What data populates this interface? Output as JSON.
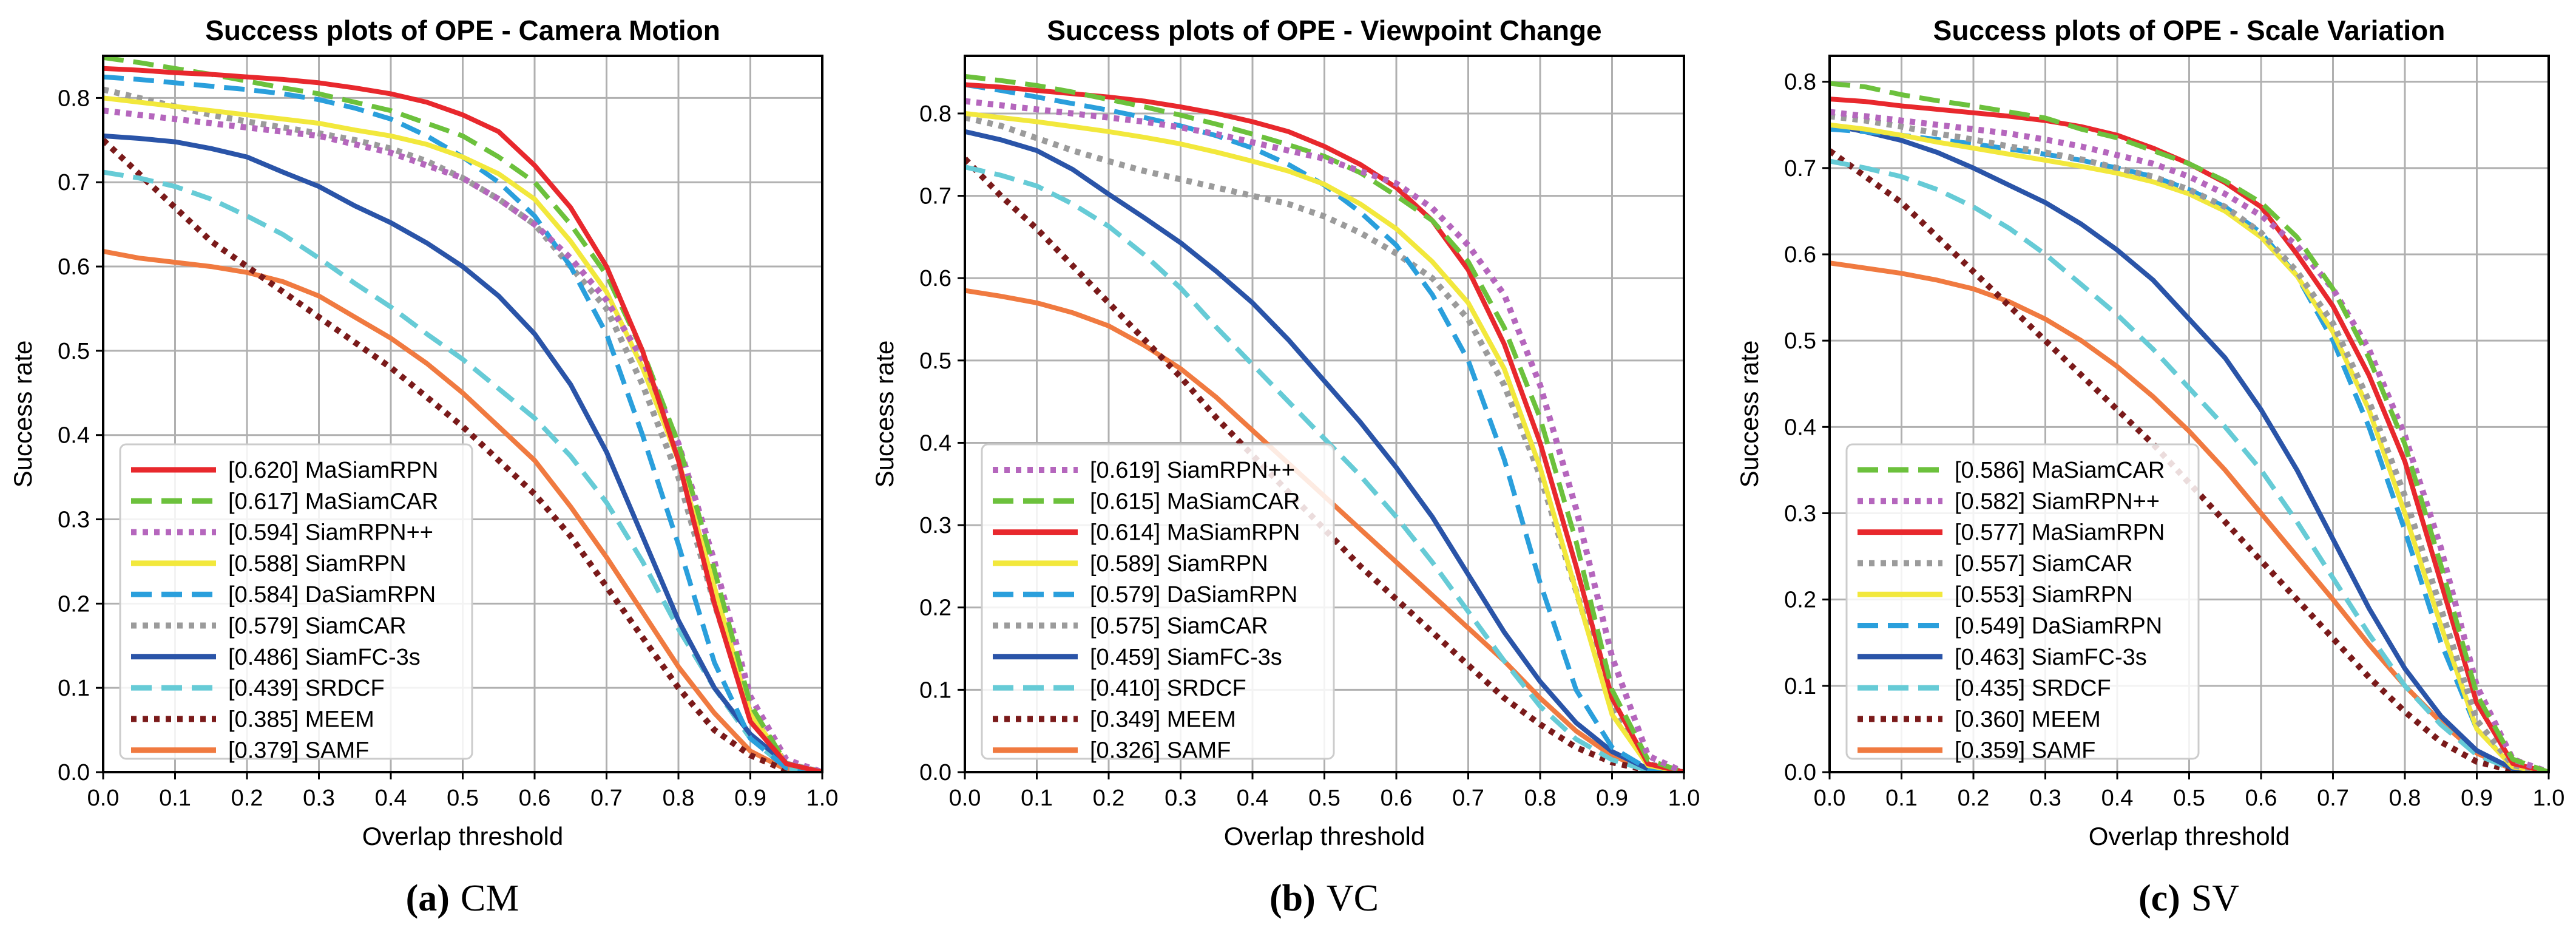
{
  "colors": {
    "MaSiamRPN": "#e8282d",
    "MaSiamCAR": "#6cc13c",
    "SiamRPN++": "#b566bd",
    "SiamRPN": "#f2e83c",
    "DaSiamRPN": "#2a9fdc",
    "SiamCAR": "#9b9b9b",
    "SiamFC-3s": "#2a54a8",
    "SRDCF": "#66cbd6",
    "MEEM": "#7a1a1a",
    "SAMF": "#f07a40"
  },
  "styles": {
    "MaSiamRPN": "solid",
    "MaSiamCAR": "dashed",
    "SiamRPN++": "dotted",
    "SiamRPN": "solid",
    "DaSiamRPN": "dashed",
    "SiamCAR": "dotted",
    "SiamFC-3s": "solid",
    "SRDCF": "dashed",
    "MEEM": "dotted",
    "SAMF": "solid"
  },
  "chart_data": [
    {
      "type": "line",
      "title": "Success plots of OPE - Camera Motion",
      "xlabel": "Overlap threshold",
      "ylabel": "Success rate",
      "xlim": [
        0,
        1
      ],
      "ylim": [
        0,
        0.85
      ],
      "xticks": [
        "0.0",
        "0.1",
        "0.2",
        "0.3",
        "0.4",
        "0.5",
        "0.6",
        "0.7",
        "0.8",
        "0.9",
        "1.0"
      ],
      "yticks": [
        "0.0",
        "0.1",
        "0.2",
        "0.3",
        "0.4",
        "0.5",
        "0.6",
        "0.7",
        "0.8"
      ],
      "grid": true,
      "legend_position": "lower-left",
      "caption_letter": "(a)",
      "caption_text": "CM",
      "x": [
        0,
        0.05,
        0.1,
        0.15,
        0.2,
        0.25,
        0.3,
        0.35,
        0.4,
        0.45,
        0.5,
        0.55,
        0.6,
        0.65,
        0.7,
        0.75,
        0.8,
        0.85,
        0.9,
        0.95,
        1.0
      ],
      "series": [
        {
          "name": "MaSiamRPN",
          "legend": "[0.620] MaSiamRPN",
          "values": [
            0.835,
            0.833,
            0.83,
            0.828,
            0.825,
            0.822,
            0.818,
            0.812,
            0.805,
            0.795,
            0.78,
            0.76,
            0.72,
            0.67,
            0.6,
            0.5,
            0.37,
            0.2,
            0.06,
            0.01,
            0.0
          ]
        },
        {
          "name": "MaSiamCAR",
          "legend": "[0.617] MaSiamCAR",
          "values": [
            0.848,
            0.842,
            0.835,
            0.828,
            0.82,
            0.812,
            0.805,
            0.795,
            0.785,
            0.77,
            0.755,
            0.73,
            0.7,
            0.65,
            0.59,
            0.5,
            0.39,
            0.24,
            0.08,
            0.01,
            0.0
          ]
        },
        {
          "name": "SiamRPN++",
          "legend": "[0.594] SiamRPN++",
          "values": [
            0.785,
            0.78,
            0.775,
            0.77,
            0.765,
            0.76,
            0.755,
            0.745,
            0.735,
            0.72,
            0.705,
            0.68,
            0.65,
            0.61,
            0.56,
            0.49,
            0.39,
            0.25,
            0.09,
            0.015,
            0.0
          ]
        },
        {
          "name": "SiamRPN",
          "legend": "[0.588] SiamRPN",
          "values": [
            0.8,
            0.795,
            0.79,
            0.785,
            0.78,
            0.775,
            0.77,
            0.762,
            0.755,
            0.745,
            0.73,
            0.71,
            0.68,
            0.63,
            0.57,
            0.48,
            0.37,
            0.22,
            0.07,
            0.01,
            0.0
          ]
        },
        {
          "name": "DaSiamRPN",
          "legend": "[0.584] DaSiamRPN",
          "values": [
            0.825,
            0.822,
            0.818,
            0.814,
            0.81,
            0.805,
            0.798,
            0.788,
            0.775,
            0.755,
            0.73,
            0.7,
            0.66,
            0.6,
            0.52,
            0.4,
            0.27,
            0.13,
            0.04,
            0.005,
            0.0
          ]
        },
        {
          "name": "SiamCAR",
          "legend": "[0.579] SiamCAR",
          "values": [
            0.81,
            0.8,
            0.79,
            0.78,
            0.772,
            0.765,
            0.758,
            0.75,
            0.74,
            0.725,
            0.705,
            0.68,
            0.65,
            0.6,
            0.55,
            0.46,
            0.35,
            0.2,
            0.07,
            0.01,
            0.0
          ]
        },
        {
          "name": "SiamFC-3s",
          "legend": "[0.486] SiamFC-3s",
          "values": [
            0.755,
            0.752,
            0.748,
            0.74,
            0.73,
            0.712,
            0.695,
            0.672,
            0.652,
            0.628,
            0.6,
            0.565,
            0.52,
            0.46,
            0.38,
            0.28,
            0.18,
            0.1,
            0.045,
            0.01,
            0.0
          ]
        },
        {
          "name": "SRDCF",
          "legend": "[0.439] SRDCF",
          "values": [
            0.712,
            0.705,
            0.695,
            0.68,
            0.66,
            0.638,
            0.61,
            0.58,
            0.552,
            0.52,
            0.49,
            0.455,
            0.42,
            0.375,
            0.32,
            0.25,
            0.17,
            0.1,
            0.04,
            0.005,
            0.0
          ]
        },
        {
          "name": "MEEM",
          "legend": "[0.385] MEEM",
          "values": [
            0.75,
            0.71,
            0.67,
            0.63,
            0.6,
            0.57,
            0.54,
            0.51,
            0.48,
            0.445,
            0.41,
            0.37,
            0.33,
            0.28,
            0.22,
            0.16,
            0.1,
            0.05,
            0.02,
            0.002,
            0.0
          ]
        },
        {
          "name": "SAMF",
          "legend": "[0.379] SAMF",
          "values": [
            0.618,
            0.61,
            0.605,
            0.6,
            0.593,
            0.582,
            0.565,
            0.54,
            0.515,
            0.485,
            0.45,
            0.41,
            0.37,
            0.315,
            0.255,
            0.19,
            0.125,
            0.07,
            0.025,
            0.003,
            0.0
          ]
        }
      ]
    },
    {
      "type": "line",
      "title": "Success plots of OPE - Viewpoint Change",
      "xlabel": "Overlap threshold",
      "ylabel": "Success rate",
      "xlim": [
        0,
        1
      ],
      "ylim": [
        0,
        0.87
      ],
      "xticks": [
        "0.0",
        "0.1",
        "0.2",
        "0.3",
        "0.4",
        "0.5",
        "0.6",
        "0.7",
        "0.8",
        "0.9",
        "1.0"
      ],
      "yticks": [
        "0.0",
        "0.1",
        "0.2",
        "0.3",
        "0.4",
        "0.5",
        "0.6",
        "0.7",
        "0.8"
      ],
      "grid": true,
      "legend_position": "lower-left",
      "caption_letter": "(b)",
      "caption_text": "VC",
      "x": [
        0,
        0.05,
        0.1,
        0.15,
        0.2,
        0.25,
        0.3,
        0.35,
        0.4,
        0.45,
        0.5,
        0.55,
        0.6,
        0.65,
        0.7,
        0.75,
        0.8,
        0.85,
        0.9,
        0.95,
        1.0
      ],
      "series": [
        {
          "name": "SiamRPN++",
          "legend": "[0.619] SiamRPN++",
          "values": [
            0.815,
            0.81,
            0.805,
            0.8,
            0.795,
            0.79,
            0.783,
            0.775,
            0.765,
            0.755,
            0.745,
            0.73,
            0.715,
            0.685,
            0.64,
            0.58,
            0.47,
            0.32,
            0.14,
            0.02,
            0.0
          ]
        },
        {
          "name": "MaSiamCAR",
          "legend": "[0.615] MaSiamCAR",
          "values": [
            0.845,
            0.84,
            0.834,
            0.826,
            0.817,
            0.808,
            0.798,
            0.787,
            0.775,
            0.762,
            0.748,
            0.728,
            0.7,
            0.67,
            0.62,
            0.54,
            0.43,
            0.28,
            0.1,
            0.015,
            0.0
          ]
        },
        {
          "name": "MaSiamRPN",
          "legend": "[0.614] MaSiamRPN",
          "values": [
            0.835,
            0.832,
            0.828,
            0.824,
            0.82,
            0.815,
            0.808,
            0.8,
            0.79,
            0.778,
            0.76,
            0.738,
            0.71,
            0.67,
            0.61,
            0.52,
            0.4,
            0.25,
            0.09,
            0.01,
            0.0
          ]
        },
        {
          "name": "SiamRPN",
          "legend": "[0.589] SiamRPN",
          "values": [
            0.8,
            0.795,
            0.79,
            0.784,
            0.778,
            0.771,
            0.763,
            0.753,
            0.742,
            0.73,
            0.714,
            0.69,
            0.66,
            0.62,
            0.57,
            0.49,
            0.37,
            0.22,
            0.07,
            0.008,
            0.0
          ]
        },
        {
          "name": "DaSiamRPN",
          "legend": "[0.579] DaSiamRPN",
          "values": [
            0.835,
            0.828,
            0.82,
            0.812,
            0.804,
            0.795,
            0.785,
            0.773,
            0.758,
            0.738,
            0.713,
            0.68,
            0.64,
            0.58,
            0.5,
            0.38,
            0.23,
            0.1,
            0.03,
            0.004,
            0.0
          ]
        },
        {
          "name": "SiamCAR",
          "legend": "[0.575] SiamCAR",
          "values": [
            0.795,
            0.785,
            0.77,
            0.755,
            0.742,
            0.73,
            0.72,
            0.71,
            0.7,
            0.69,
            0.675,
            0.655,
            0.63,
            0.6,
            0.55,
            0.47,
            0.36,
            0.22,
            0.08,
            0.01,
            0.0
          ]
        },
        {
          "name": "SiamFC-3s",
          "legend": "[0.459] SiamFC-3s",
          "values": [
            0.778,
            0.768,
            0.755,
            0.732,
            0.702,
            0.673,
            0.643,
            0.608,
            0.57,
            0.525,
            0.475,
            0.425,
            0.37,
            0.31,
            0.24,
            0.17,
            0.11,
            0.06,
            0.025,
            0.004,
            0.0
          ]
        },
        {
          "name": "SRDCF",
          "legend": "[0.410] SRDCF",
          "values": [
            0.735,
            0.725,
            0.712,
            0.69,
            0.663,
            0.628,
            0.588,
            0.54,
            0.495,
            0.45,
            0.405,
            0.36,
            0.31,
            0.255,
            0.195,
            0.135,
            0.08,
            0.04,
            0.015,
            0.002,
            0.0
          ]
        },
        {
          "name": "MEEM",
          "legend": "[0.349] MEEM",
          "values": [
            0.745,
            0.7,
            0.66,
            0.615,
            0.57,
            0.525,
            0.48,
            0.43,
            0.385,
            0.34,
            0.295,
            0.25,
            0.21,
            0.17,
            0.13,
            0.09,
            0.058,
            0.03,
            0.012,
            0.002,
            0.0
          ]
        },
        {
          "name": "SAMF",
          "legend": "[0.326] SAMF",
          "values": [
            0.585,
            0.578,
            0.57,
            0.558,
            0.542,
            0.518,
            0.49,
            0.455,
            0.415,
            0.375,
            0.335,
            0.295,
            0.255,
            0.215,
            0.175,
            0.135,
            0.09,
            0.05,
            0.02,
            0.003,
            0.0
          ]
        }
      ]
    },
    {
      "type": "line",
      "title": "Success plots of OPE - Scale Variation",
      "xlabel": "Overlap threshold",
      "ylabel": "Success rate",
      "xlim": [
        0,
        1
      ],
      "ylim": [
        0,
        0.83
      ],
      "xticks": [
        "0.0",
        "0.1",
        "0.2",
        "0.3",
        "0.4",
        "0.5",
        "0.6",
        "0.7",
        "0.8",
        "0.9",
        "1.0"
      ],
      "yticks": [
        "0.0",
        "0.1",
        "0.2",
        "0.3",
        "0.4",
        "0.5",
        "0.6",
        "0.7",
        "0.8"
      ],
      "grid": true,
      "legend_position": "lower-left",
      "caption_letter": "(c)",
      "caption_text": "SV",
      "x": [
        0,
        0.05,
        0.1,
        0.15,
        0.2,
        0.25,
        0.3,
        0.35,
        0.4,
        0.45,
        0.5,
        0.55,
        0.6,
        0.65,
        0.7,
        0.75,
        0.8,
        0.85,
        0.9,
        0.95,
        1.0
      ],
      "series": [
        {
          "name": "MaSiamCAR",
          "legend": "[0.586] MaSiamCAR",
          "values": [
            0.798,
            0.794,
            0.785,
            0.778,
            0.772,
            0.765,
            0.758,
            0.745,
            0.735,
            0.72,
            0.705,
            0.685,
            0.66,
            0.62,
            0.56,
            0.48,
            0.38,
            0.24,
            0.09,
            0.015,
            0.0
          ]
        },
        {
          "name": "SiamRPN++",
          "legend": "[0.582] SiamRPN++",
          "values": [
            0.765,
            0.76,
            0.755,
            0.75,
            0.745,
            0.74,
            0.733,
            0.725,
            0.715,
            0.705,
            0.69,
            0.67,
            0.645,
            0.61,
            0.56,
            0.49,
            0.39,
            0.26,
            0.1,
            0.015,
            0.0
          ]
        },
        {
          "name": "MaSiamRPN",
          "legend": "[0.577] MaSiamRPN",
          "values": [
            0.78,
            0.777,
            0.772,
            0.768,
            0.764,
            0.76,
            0.755,
            0.748,
            0.738,
            0.723,
            0.705,
            0.683,
            0.655,
            0.6,
            0.54,
            0.46,
            0.36,
            0.22,
            0.08,
            0.01,
            0.0
          ]
        },
        {
          "name": "SiamCAR",
          "legend": "[0.557] SiamCAR",
          "values": [
            0.76,
            0.755,
            0.748,
            0.74,
            0.733,
            0.725,
            0.718,
            0.71,
            0.7,
            0.69,
            0.675,
            0.655,
            0.625,
            0.58,
            0.52,
            0.43,
            0.32,
            0.19,
            0.06,
            0.008,
            0.0
          ]
        },
        {
          "name": "SiamRPN",
          "legend": "[0.553] SiamRPN",
          "values": [
            0.75,
            0.745,
            0.738,
            0.73,
            0.723,
            0.716,
            0.709,
            0.702,
            0.694,
            0.684,
            0.67,
            0.65,
            0.62,
            0.575,
            0.51,
            0.42,
            0.3,
            0.17,
            0.05,
            0.006,
            0.0
          ]
        },
        {
          "name": "DaSiamRPN",
          "legend": "[0.549] DaSiamRPN",
          "values": [
            0.745,
            0.742,
            0.738,
            0.733,
            0.728,
            0.722,
            0.716,
            0.709,
            0.7,
            0.69,
            0.675,
            0.655,
            0.625,
            0.575,
            0.5,
            0.4,
            0.28,
            0.15,
            0.05,
            0.007,
            0.0
          ]
        },
        {
          "name": "SiamFC-3s",
          "legend": "[0.463] SiamFC-3s",
          "values": [
            0.75,
            0.742,
            0.732,
            0.718,
            0.7,
            0.68,
            0.66,
            0.635,
            0.605,
            0.57,
            0.525,
            0.48,
            0.42,
            0.35,
            0.27,
            0.19,
            0.12,
            0.065,
            0.025,
            0.004,
            0.0
          ]
        },
        {
          "name": "SRDCF",
          "legend": "[0.435] SRDCF",
          "values": [
            0.708,
            0.7,
            0.69,
            0.675,
            0.655,
            0.63,
            0.6,
            0.565,
            0.53,
            0.49,
            0.445,
            0.4,
            0.35,
            0.29,
            0.225,
            0.16,
            0.1,
            0.055,
            0.02,
            0.003,
            0.0
          ]
        },
        {
          "name": "MEEM",
          "legend": "[0.360] MEEM",
          "values": [
            0.72,
            0.69,
            0.66,
            0.62,
            0.58,
            0.54,
            0.5,
            0.46,
            0.42,
            0.38,
            0.335,
            0.29,
            0.245,
            0.2,
            0.155,
            0.11,
            0.07,
            0.035,
            0.012,
            0.002,
            0.0
          ]
        },
        {
          "name": "SAMF",
          "legend": "[0.359] SAMF",
          "values": [
            0.59,
            0.584,
            0.578,
            0.57,
            0.56,
            0.545,
            0.525,
            0.5,
            0.47,
            0.435,
            0.395,
            0.35,
            0.3,
            0.25,
            0.2,
            0.148,
            0.1,
            0.058,
            0.022,
            0.003,
            0.0
          ]
        }
      ]
    }
  ]
}
